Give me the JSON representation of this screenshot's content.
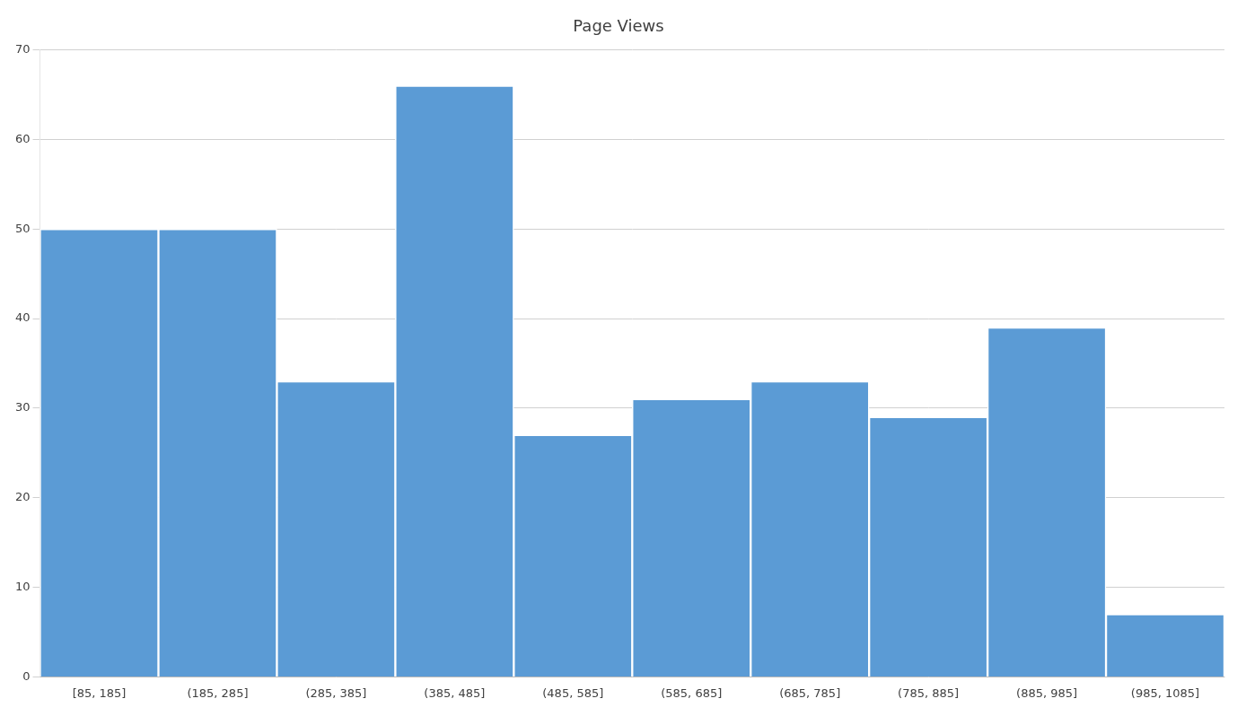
{
  "chart_data": {
    "type": "bar",
    "title": "Page Views",
    "categories": [
      "[85, 185]",
      "(185, 285]",
      "(285, 385]",
      "(385, 485]",
      "(485, 585]",
      "(585, 685]",
      "(685, 785]",
      "(785, 885]",
      "(885, 985]",
      "(985, 1085]"
    ],
    "values": [
      50,
      50,
      33,
      66,
      27,
      31,
      33,
      29,
      39,
      7
    ],
    "color": "#5b9bd5",
    "ylim": [
      0,
      70
    ],
    "yticks": [
      0,
      10,
      20,
      30,
      40,
      50,
      60,
      70
    ],
    "grid": true
  }
}
